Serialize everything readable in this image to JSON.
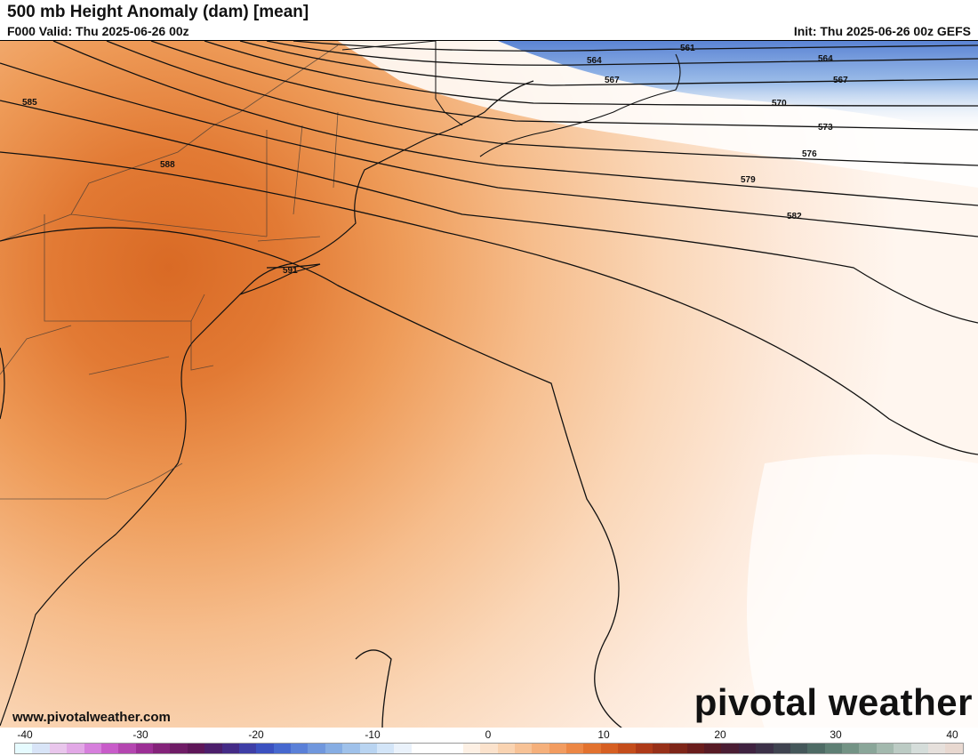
{
  "header": {
    "title": "500 mb Height Anomaly (dam) [mean]",
    "valid": "F000 Valid: Thu 2025-06-26 00z",
    "init": "Init: Thu 2025-06-26 00z GEFS"
  },
  "map": {
    "contour_labels": [
      "561",
      "564",
      "567",
      "570",
      "573",
      "576",
      "579",
      "582",
      "585",
      "588",
      "591",
      "564",
      "567"
    ]
  },
  "footer": {
    "website": "www.pivotalweather.com",
    "brand": "pivotal weather"
  },
  "colorbar": {
    "ticks": [
      "-40",
      "-30",
      "-20",
      "-10",
      "0",
      "10",
      "20",
      "30",
      "40"
    ],
    "colors": [
      "#e6fbff",
      "#d8e4f7",
      "#e9c6ec",
      "#e2a8e6",
      "#d67fdc",
      "#c85cc9",
      "#b446b0",
      "#9c2f95",
      "#84237a",
      "#6f1c66",
      "#5e1658",
      "#4c1e6b",
      "#442b86",
      "#3e3ea6",
      "#3b51c0",
      "#4668cf",
      "#5a80d8",
      "#7097dd",
      "#86ade3",
      "#9fc1ea",
      "#b9d4f1",
      "#d3e5f8",
      "#eaf2fb",
      "#ffffff",
      "#ffffff",
      "#ffffff",
      "#fdf0e4",
      "#fbe2cc",
      "#f9d3b1",
      "#f7c296",
      "#f5b07b",
      "#f29c60",
      "#ec8745",
      "#e2722f",
      "#d65f22",
      "#c44d1b",
      "#ae3a18",
      "#973018",
      "#7e2518",
      "#6a1d1c",
      "#571a24",
      "#4a1d33",
      "#3f2240",
      "#3c3148",
      "#3f4350",
      "#44575a",
      "#4e6b65",
      "#5e7f74",
      "#739385",
      "#8aa699",
      "#a3b9ae",
      "#bccbc4",
      "#d5ddda",
      "#e6e0dc",
      "#e8d8d0"
    ]
  }
}
